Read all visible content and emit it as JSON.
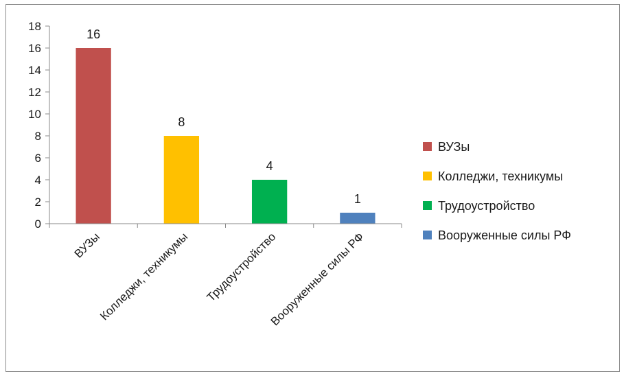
{
  "chart_data": {
    "type": "bar",
    "categories": [
      "ВУЗы",
      "Колледжи, техникумы",
      "Трудоустройство",
      "Вооруженные силы РФ"
    ],
    "values": [
      16,
      8,
      4,
      1
    ],
    "colors": [
      "#c0504d",
      "#ffc000",
      "#00b050",
      "#4f81bd"
    ],
    "ylim": [
      0,
      18
    ],
    "yticks": [
      0,
      2,
      4,
      6,
      8,
      10,
      12,
      14,
      16,
      18
    ],
    "tick_labels": [
      "0",
      "2",
      "4",
      "6",
      "8",
      "10",
      "12",
      "14",
      "16",
      "18"
    ],
    "data_labels": [
      "16",
      "8",
      "4",
      "1"
    ],
    "grid": false,
    "legend": {
      "placement": "right",
      "entries": [
        "ВУЗы",
        "Колледжи, техникумы",
        "Трудоустройство",
        "Вооруженные силы РФ"
      ]
    }
  }
}
